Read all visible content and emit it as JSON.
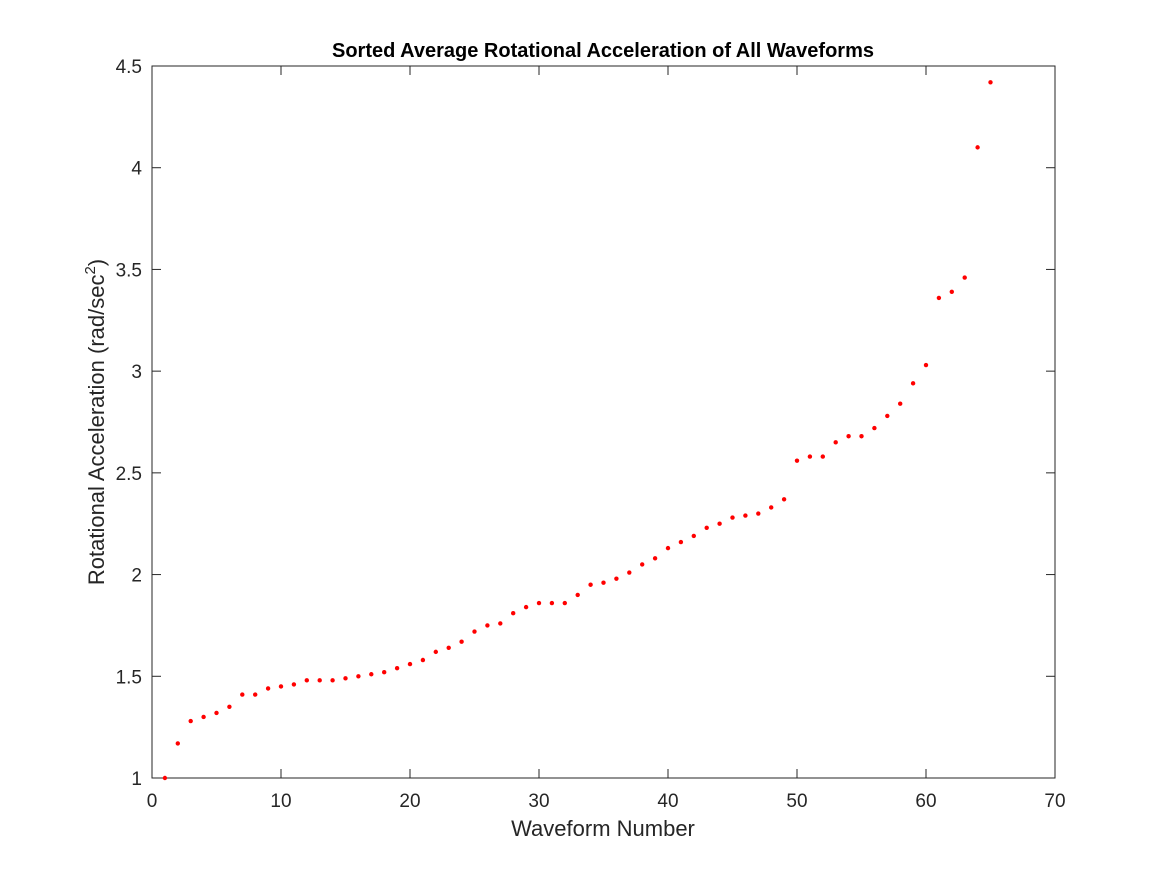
{
  "chart_data": {
    "type": "scatter",
    "title": "Sorted Average Rotational Acceleration of All Waveforms",
    "xlabel": "Waveform Number",
    "ylabel": "Rotational Acceleration (rad/sec",
    "ylabel_superscript": "2",
    "ylabel_suffix": ")",
    "xlim": [
      0,
      70
    ],
    "ylim": [
      1,
      4.5
    ],
    "xticks": [
      0,
      10,
      20,
      30,
      40,
      50,
      60,
      70
    ],
    "yticks": [
      1,
      1.5,
      2,
      2.5,
      3,
      3.5,
      4,
      4.5
    ],
    "ytick_labels": [
      "1",
      "1.5",
      "2",
      "2.5",
      "3",
      "3.5",
      "4",
      "4.5"
    ],
    "grid": false,
    "marker_color": "#ff0000",
    "series": [
      {
        "x": [
          1,
          2,
          3,
          4,
          5,
          6,
          7,
          8,
          9,
          10,
          11,
          12,
          13,
          14,
          15,
          16,
          17,
          18,
          19,
          20,
          21,
          22,
          23,
          24,
          25,
          26,
          27,
          28,
          29,
          30,
          31,
          32,
          33,
          34,
          35,
          36,
          37,
          38,
          39,
          40,
          41,
          42,
          43,
          44,
          45,
          46,
          47,
          48,
          49,
          50,
          51,
          52,
          53,
          54,
          55,
          56,
          57,
          58,
          59,
          60,
          61,
          62,
          63,
          64,
          65
        ],
        "y": [
          1.0,
          1.17,
          1.28,
          1.3,
          1.32,
          1.35,
          1.41,
          1.41,
          1.44,
          1.45,
          1.46,
          1.48,
          1.48,
          1.48,
          1.49,
          1.5,
          1.51,
          1.52,
          1.54,
          1.56,
          1.58,
          1.62,
          1.64,
          1.67,
          1.72,
          1.75,
          1.76,
          1.81,
          1.84,
          1.86,
          1.86,
          1.86,
          1.9,
          1.95,
          1.96,
          1.98,
          2.01,
          2.05,
          2.08,
          2.13,
          2.16,
          2.19,
          2.23,
          2.25,
          2.28,
          2.29,
          2.3,
          2.33,
          2.37,
          2.56,
          2.58,
          2.58,
          2.65,
          2.68,
          2.68,
          2.72,
          2.78,
          2.84,
          2.94,
          3.03,
          3.36,
          3.39,
          3.46,
          4.1,
          4.42
        ]
      }
    ]
  },
  "colors": {
    "axis": "#262626",
    "marker": "#ff0000",
    "background": "#ffffff"
  }
}
